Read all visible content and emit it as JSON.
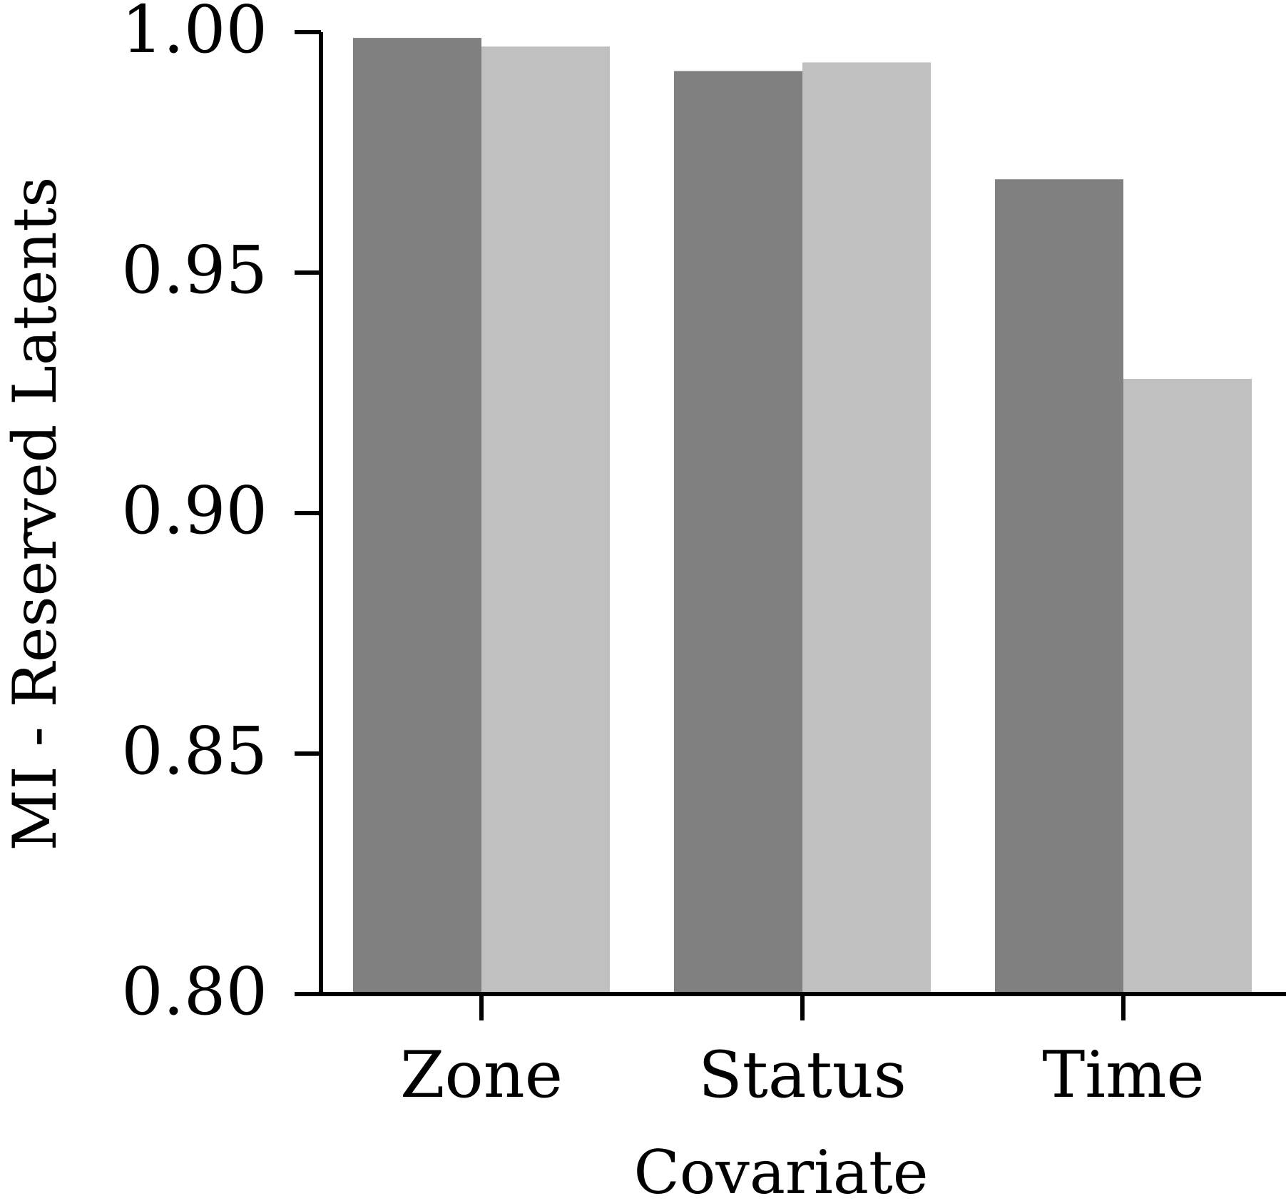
{
  "chart_data": {
    "type": "bar",
    "title": "",
    "xlabel": "Covariate",
    "ylabel": "MI - Reserved Latents",
    "categories": [
      "Zone",
      "Status",
      "Time"
    ],
    "series": [
      {
        "values": [
          0.9988,
          0.9919,
          0.9694
        ],
        "color": "#808080"
      },
      {
        "values": [
          0.997,
          0.9937,
          0.9279
        ],
        "color": "#c0c0c0"
      }
    ],
    "ylim": [
      0.8,
      1.0
    ],
    "yticks": [
      "0.80",
      "0.85",
      "0.90",
      "0.95",
      "1.00"
    ],
    "grid": false,
    "legend": "none"
  }
}
